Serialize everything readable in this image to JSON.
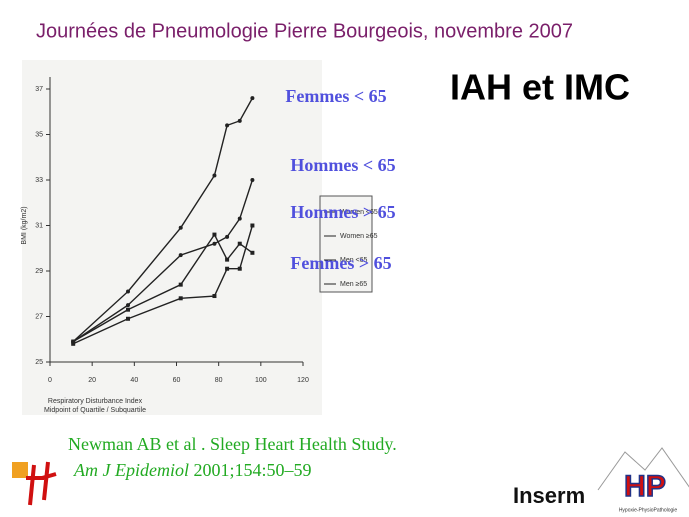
{
  "header": "Journées de Pneumologie Pierre Bourgeois, novembre 2007",
  "slide_title": "IAH et IMC",
  "citation": {
    "line1": "Newman AB et al . Sleep Heart Health Study.",
    "journal": "Am J Epidemiol",
    "details": "2001;154:50–59"
  },
  "logos": {
    "inserm": "Inserm",
    "hp": "HP",
    "hp_caption": "Hypoxie-PhysioPathologie"
  },
  "chart_data": {
    "type": "line",
    "x_label": "Respiratory Disturbance Index",
    "x_sublabel": "Midpoint of Quartile / Subquartile",
    "y_label": "BMI (kg/m2)",
    "xlim": [
      0,
      120
    ],
    "xticks": [
      0,
      20,
      40,
      60,
      80,
      100,
      120
    ],
    "ylim": [
      25,
      37
    ],
    "yticks": [
      25,
      27,
      29,
      31,
      33,
      35,
      37
    ],
    "series": [
      {
        "name": "Women <65",
        "color": "#222222",
        "x": [
          11,
          37,
          62,
          78,
          84,
          90,
          96
        ],
        "values": [
          25.9,
          28.1,
          30.9,
          33.2,
          35.4,
          35.6,
          36.6
        ]
      },
      {
        "name": "Women ≥65",
        "color": "#222222",
        "x": [
          11,
          37,
          62,
          78,
          84,
          90,
          96
        ],
        "values": [
          25.9,
          27.3,
          28.4,
          30.6,
          29.5,
          30.2,
          29.8
        ]
      },
      {
        "name": "Men <65",
        "color": "#222222",
        "x": [
          11,
          37,
          62,
          78,
          84,
          90,
          96
        ],
        "values": [
          25.9,
          27.5,
          29.7,
          30.2,
          30.5,
          31.3,
          33.0
        ]
      },
      {
        "name": "Men ≥65",
        "color": "#222222",
        "x": [
          11,
          37,
          62,
          78,
          84,
          90,
          96
        ],
        "values": [
          25.8,
          26.9,
          27.8,
          27.9,
          29.1,
          29.1,
          31.0
        ]
      }
    ],
    "annotations": [
      "Femmes < 65",
      "Hommes < 65",
      "Hommes > 65",
      "Femmes > 65"
    ]
  }
}
